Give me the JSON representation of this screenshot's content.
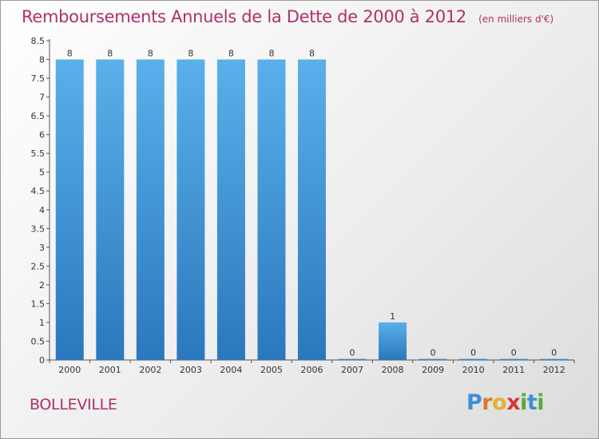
{
  "title": "Remboursements Annuels de la Dette de 2000 à 2012",
  "unit": "(en milliers d'€)",
  "commune": "BOLLEVILLE",
  "logo": {
    "letters": [
      "P",
      "r",
      "o",
      "x",
      "i",
      "t",
      "i"
    ],
    "colors": [
      "#3c8ed6",
      "#e0762a",
      "#e2b22b",
      "#d8343a",
      "#5aa83a",
      "#3c8ed6",
      "#5aa83a"
    ]
  },
  "colors": {
    "bar_top": "#5ab0ea",
    "bar_bottom": "#2a78bd",
    "title": "#b0306a"
  },
  "chart_data": {
    "type": "bar",
    "categories": [
      "2000",
      "2001",
      "2002",
      "2003",
      "2004",
      "2005",
      "2006",
      "2007",
      "2008",
      "2009",
      "2010",
      "2011",
      "2012"
    ],
    "values": [
      8,
      8,
      8,
      8,
      8,
      8,
      8,
      0,
      1,
      0,
      0,
      0,
      0
    ],
    "data_labels": [
      "8",
      "8",
      "8",
      "8",
      "8",
      "8",
      "8",
      "0",
      "1",
      "0",
      "0",
      "0",
      "0"
    ],
    "ylim": [
      0,
      8.5
    ],
    "yticks": [
      0,
      0.5,
      1,
      1.5,
      2,
      2.5,
      3,
      3.5,
      4,
      4.5,
      5,
      5.5,
      6,
      6.5,
      7,
      7.5,
      8,
      8.5
    ],
    "ytick_labels": [
      "0",
      "0.5",
      "1",
      "1.5",
      "2",
      "2.5",
      "3",
      "3.5",
      "4",
      "4.5",
      "5",
      "5.5",
      "6",
      "6.5",
      "7",
      "7.5",
      "8",
      "8.5"
    ],
    "grid": false
  }
}
